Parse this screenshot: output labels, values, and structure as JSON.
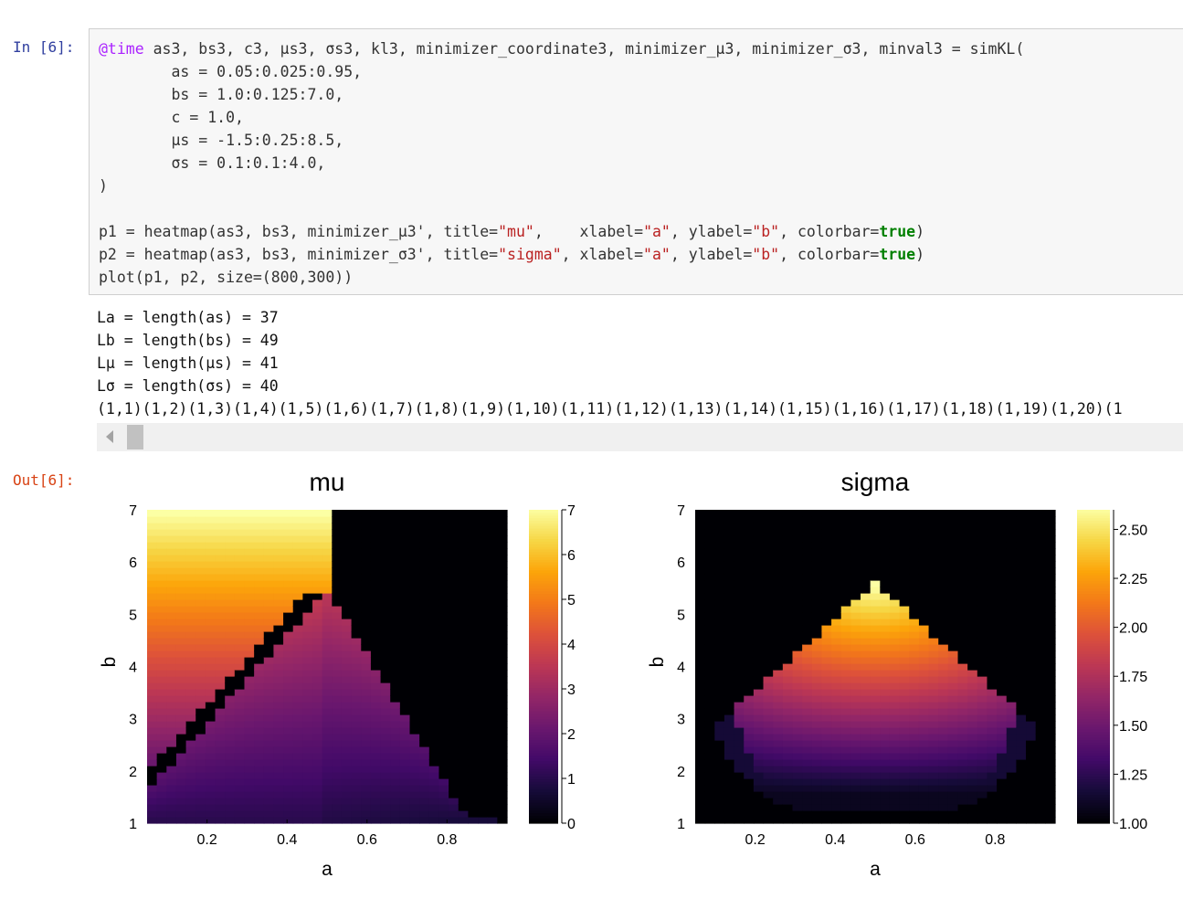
{
  "cell": {
    "in_prompt": "In [6]:",
    "out_prompt": "Out[6]:",
    "code_lines": [
      [
        {
          "t": "@time",
          "c": "kw-macro"
        },
        {
          "t": " as3, bs3, c3, µs3, σs3, kl3, minimizer_coordinate3, minimizer_µ3, minimizer_σ3, minval3 = simKL("
        }
      ],
      [
        {
          "t": "        as = 0.05:0.025:0.95,"
        }
      ],
      [
        {
          "t": "        bs = 1.0:0.125:7.0,"
        }
      ],
      [
        {
          "t": "        c = 1.0,"
        }
      ],
      [
        {
          "t": "        µs = -1.5:0.25:8.5,"
        }
      ],
      [
        {
          "t": "        σs = 0.1:0.1:4.0,"
        }
      ],
      [
        {
          "t": ")"
        }
      ],
      [
        {
          "t": ""
        }
      ],
      [
        {
          "t": "p1 = heatmap(as3, bs3, minimizer_µ3', title="
        },
        {
          "t": "\"mu\"",
          "c": "str"
        },
        {
          "t": ",    xlabel="
        },
        {
          "t": "\"a\"",
          "c": "str"
        },
        {
          "t": ", ylabel="
        },
        {
          "t": "\"b\"",
          "c": "str"
        },
        {
          "t": ", colorbar="
        },
        {
          "t": "true",
          "c": "bool"
        },
        {
          "t": ")"
        }
      ],
      [
        {
          "t": "p2 = heatmap(as3, bs3, minimizer_σ3', title="
        },
        {
          "t": "\"sigma\"",
          "c": "str"
        },
        {
          "t": ", xlabel="
        },
        {
          "t": "\"a\"",
          "c": "str"
        },
        {
          "t": ", ylabel="
        },
        {
          "t": "\"b\"",
          "c": "str"
        },
        {
          "t": ", colorbar="
        },
        {
          "t": "true",
          "c": "bool"
        },
        {
          "t": ")"
        }
      ],
      [
        {
          "t": "plot(p1, p2, size=(800,300))"
        }
      ]
    ],
    "stdout_lines": [
      "La = length(as) = 37",
      "Lb = length(bs) = 49",
      "Lµ = length(µs) = 41",
      "Lσ = length(σs) = 40",
      "(1,1)(1,2)(1,3)(1,4)(1,5)(1,6)(1,7)(1,8)(1,9)(1,10)(1,11)(1,12)(1,13)(1,14)(1,15)(1,16)(1,17)(1,18)(1,19)(1,20)(1"
    ]
  },
  "chart_data": [
    {
      "type": "heatmap",
      "title": "mu",
      "xlabel": "a",
      "ylabel": "b",
      "x_range": [
        0.05,
        0.95
      ],
      "y_range": [
        1.0,
        7.0
      ],
      "x_ticks": [
        "0.2",
        "0.4",
        "0.6",
        "0.8"
      ],
      "y_ticks": [
        "1",
        "2",
        "3",
        "4",
        "5",
        "6",
        "7"
      ],
      "colorbar": {
        "range": [
          0,
          7
        ],
        "ticks": [
          "0",
          "1",
          "2",
          "3",
          "4",
          "5",
          "6",
          "7"
        ]
      },
      "colormap": "inferno",
      "description_of_values": "mu ≈ b on left plateau (a ≤ ~0.5, b ≥ ~5.4), ~0 on black upper-right region, 1–3.5 in lower triangular region"
    },
    {
      "type": "heatmap",
      "title": "sigma",
      "xlabel": "a",
      "ylabel": "b",
      "x_range": [
        0.05,
        0.95
      ],
      "y_range": [
        1.0,
        7.0
      ],
      "x_ticks": [
        "0.2",
        "0.4",
        "0.6",
        "0.8"
      ],
      "y_ticks": [
        "1",
        "2",
        "3",
        "4",
        "5",
        "6",
        "7"
      ],
      "colorbar": {
        "range": [
          1.0,
          2.6
        ],
        "ticks": [
          "1.00",
          "1.25",
          "1.50",
          "1.75",
          "2.00",
          "2.25",
          "2.50"
        ]
      },
      "colormap": "inferno"
    }
  ]
}
